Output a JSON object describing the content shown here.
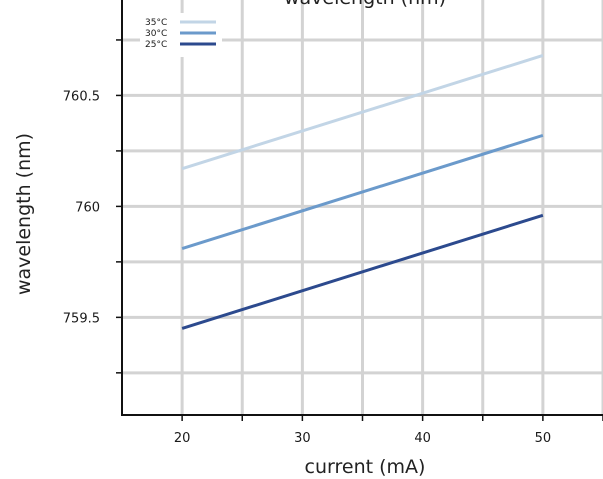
{
  "chart_data": {
    "type": "line",
    "title": "wavelength (nm)",
    "xlabel": "current (mA)",
    "ylabel": "wavelength (nm)",
    "xlim": [
      15,
      55
    ],
    "ylim": [
      759.06,
      760.93
    ],
    "x_ticks": [
      20,
      30,
      40,
      50
    ],
    "x_tick_labels": [
      "20",
      "30",
      "40",
      "50"
    ],
    "y_ticks": [
      759.5,
      760,
      760.5
    ],
    "y_tick_labels": [
      "759.5",
      "760",
      "760.5"
    ],
    "grid": true,
    "legend_position": "top-left",
    "series": [
      {
        "name": "35°C",
        "color": "#c2d5e6",
        "x": [
          20,
          50
        ],
        "y": [
          760.17,
          760.68
        ]
      },
      {
        "name": "30°C",
        "color": "#6b9acb",
        "x": [
          20,
          50
        ],
        "y": [
          759.81,
          760.32
        ]
      },
      {
        "name": "25°C",
        "color": "#2c4a8e",
        "x": [
          20,
          50
        ],
        "y": [
          759.45,
          759.96
        ]
      }
    ]
  }
}
